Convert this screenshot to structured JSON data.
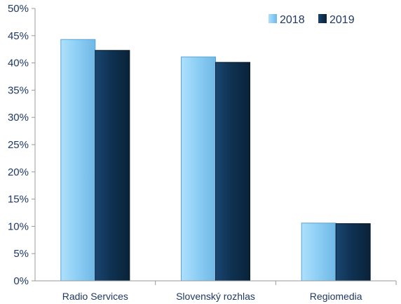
{
  "chart_data": {
    "type": "bar",
    "title": "",
    "xlabel": "",
    "ylabel": "",
    "categories": [
      "Radio Services",
      "Slovenský rozhlas",
      "Regiomedia"
    ],
    "series": [
      {
        "name": "2018",
        "values": [
          44.3,
          41.1,
          10.6
        ],
        "color": "#8ecff5"
      },
      {
        "name": "2019",
        "values": [
          42.3,
          40.1,
          10.5
        ],
        "color": "#0f3253"
      }
    ],
    "ylim": [
      0,
      50
    ],
    "yticks": [
      "0%",
      "5%",
      "10%",
      "15%",
      "20%",
      "25%",
      "30%",
      "35%",
      "40%",
      "45%",
      "50%"
    ],
    "grid": false,
    "legend_position": "top-right"
  }
}
